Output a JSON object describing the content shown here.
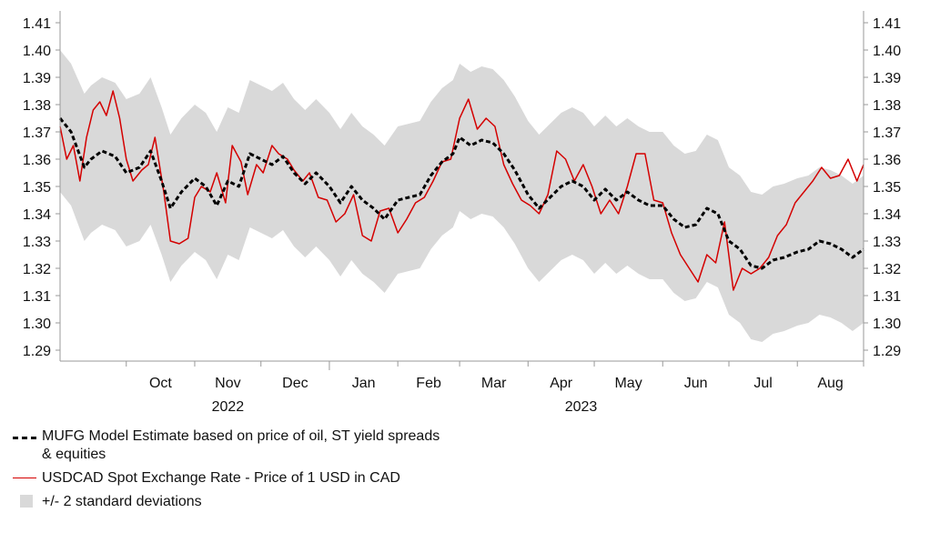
{
  "chart_data": {
    "type": "line",
    "title": "",
    "xlabel": "",
    "ylabel": "",
    "ylim": [
      1.285,
      1.415
    ],
    "y_ticks": [
      "1.41",
      "1.40",
      "1.39",
      "1.38",
      "1.37",
      "1.36",
      "1.35",
      "1.34",
      "1.33",
      "1.32",
      "1.31",
      "1.30",
      "1.29"
    ],
    "x_month_labels": [
      "Oct",
      "Nov",
      "Dec",
      "Jan",
      "Feb",
      "Mar",
      "Apr",
      "May",
      "Jun",
      "Jul",
      "Aug"
    ],
    "x_year_labels": [
      "2022",
      "2023"
    ],
    "x_start": "2022-09-01",
    "x_end": "2023-08-31",
    "grid": false,
    "legend_position": "bottom-left",
    "colors": {
      "spot": "#d40000",
      "model": "#000000",
      "band": "#d9d9d9"
    },
    "series": [
      {
        "name": "MUFG Model Estimate based on price of oil, ST yield spreads & equities",
        "style": "dashed-black",
        "x": [
          "2022-09-01",
          "2022-09-06",
          "2022-09-12",
          "2022-09-15",
          "2022-09-20",
          "2022-09-26",
          "2022-10-01",
          "2022-10-07",
          "2022-10-12",
          "2022-10-17",
          "2022-10-21",
          "2022-10-26",
          "2022-11-01",
          "2022-11-06",
          "2022-11-11",
          "2022-11-16",
          "2022-11-21",
          "2022-11-26",
          "2022-12-01",
          "2022-12-06",
          "2022-12-11",
          "2022-12-16",
          "2022-12-21",
          "2022-12-26",
          "2023-01-01",
          "2023-01-06",
          "2023-01-11",
          "2023-01-16",
          "2023-01-21",
          "2023-01-26",
          "2023-02-01",
          "2023-02-06",
          "2023-02-11",
          "2023-02-16",
          "2023-02-21",
          "2023-02-26",
          "2023-03-01",
          "2023-03-06",
          "2023-03-11",
          "2023-03-16",
          "2023-03-21",
          "2023-03-26",
          "2023-04-01",
          "2023-04-06",
          "2023-04-11",
          "2023-04-16",
          "2023-04-21",
          "2023-04-26",
          "2023-05-01",
          "2023-05-06",
          "2023-05-11",
          "2023-05-16",
          "2023-05-21",
          "2023-05-26",
          "2023-06-01",
          "2023-06-06",
          "2023-06-11",
          "2023-06-16",
          "2023-06-21",
          "2023-06-26",
          "2023-07-01",
          "2023-07-06",
          "2023-07-11",
          "2023-07-16",
          "2023-07-21",
          "2023-07-26",
          "2023-08-01",
          "2023-08-06",
          "2023-08-11",
          "2023-08-16",
          "2023-08-21",
          "2023-08-26",
          "2023-08-31"
        ],
        "values": [
          1.375,
          1.37,
          1.357,
          1.36,
          1.363,
          1.361,
          1.355,
          1.357,
          1.363,
          1.352,
          1.342,
          1.348,
          1.353,
          1.35,
          1.343,
          1.352,
          1.35,
          1.362,
          1.36,
          1.358,
          1.361,
          1.355,
          1.351,
          1.355,
          1.35,
          1.344,
          1.35,
          1.345,
          1.342,
          1.338,
          1.345,
          1.346,
          1.347,
          1.354,
          1.359,
          1.362,
          1.368,
          1.365,
          1.367,
          1.366,
          1.362,
          1.356,
          1.347,
          1.342,
          1.346,
          1.35,
          1.352,
          1.35,
          1.345,
          1.349,
          1.345,
          1.348,
          1.345,
          1.343,
          1.343,
          1.338,
          1.335,
          1.336,
          1.342,
          1.34,
          1.33,
          1.327,
          1.321,
          1.32,
          1.323,
          1.324,
          1.326,
          1.327,
          1.33,
          1.329,
          1.327,
          1.324,
          1.327
        ]
      },
      {
        "name": "USDCAD Spot Exchange Rate - Price of 1 USD in CAD",
        "style": "solid-red",
        "x": [
          "2022-09-01",
          "2022-09-04",
          "2022-09-07",
          "2022-09-10",
          "2022-09-13",
          "2022-09-16",
          "2022-09-19",
          "2022-09-22",
          "2022-09-25",
          "2022-09-28",
          "2022-10-01",
          "2022-10-04",
          "2022-10-08",
          "2022-10-11",
          "2022-10-14",
          "2022-10-18",
          "2022-10-21",
          "2022-10-25",
          "2022-10-29",
          "2022-11-01",
          "2022-11-04",
          "2022-11-08",
          "2022-11-11",
          "2022-11-15",
          "2022-11-18",
          "2022-11-22",
          "2022-11-25",
          "2022-11-29",
          "2022-12-02",
          "2022-12-06",
          "2022-12-09",
          "2022-12-13",
          "2022-12-16",
          "2022-12-20",
          "2022-12-23",
          "2022-12-27",
          "2022-12-31",
          "2023-01-04",
          "2023-01-08",
          "2023-01-12",
          "2023-01-16",
          "2023-01-20",
          "2023-01-24",
          "2023-01-28",
          "2023-02-01",
          "2023-02-05",
          "2023-02-09",
          "2023-02-13",
          "2023-02-17",
          "2023-02-21",
          "2023-02-25",
          "2023-03-01",
          "2023-03-05",
          "2023-03-09",
          "2023-03-13",
          "2023-03-17",
          "2023-03-21",
          "2023-03-25",
          "2023-03-29",
          "2023-04-02",
          "2023-04-06",
          "2023-04-10",
          "2023-04-14",
          "2023-04-18",
          "2023-04-22",
          "2023-04-26",
          "2023-04-30",
          "2023-05-04",
          "2023-05-08",
          "2023-05-12",
          "2023-05-16",
          "2023-05-20",
          "2023-05-24",
          "2023-05-28",
          "2023-06-01",
          "2023-06-05",
          "2023-06-09",
          "2023-06-13",
          "2023-06-17",
          "2023-06-21",
          "2023-06-25",
          "2023-06-29",
          "2023-07-03",
          "2023-07-07",
          "2023-07-11",
          "2023-07-15",
          "2023-07-19",
          "2023-07-23",
          "2023-07-27",
          "2023-07-31",
          "2023-08-04",
          "2023-08-08",
          "2023-08-12",
          "2023-08-16",
          "2023-08-20",
          "2023-08-24",
          "2023-08-28",
          "2023-08-31"
        ],
        "values": [
          1.372,
          1.36,
          1.365,
          1.352,
          1.368,
          1.378,
          1.381,
          1.376,
          1.385,
          1.375,
          1.36,
          1.352,
          1.356,
          1.358,
          1.368,
          1.348,
          1.33,
          1.329,
          1.331,
          1.346,
          1.35,
          1.348,
          1.355,
          1.344,
          1.365,
          1.359,
          1.347,
          1.358,
          1.355,
          1.365,
          1.362,
          1.36,
          1.356,
          1.352,
          1.355,
          1.346,
          1.345,
          1.337,
          1.34,
          1.347,
          1.332,
          1.33,
          1.341,
          1.342,
          1.333,
          1.338,
          1.344,
          1.346,
          1.352,
          1.359,
          1.36,
          1.375,
          1.382,
          1.371,
          1.375,
          1.372,
          1.358,
          1.351,
          1.345,
          1.343,
          1.34,
          1.347,
          1.363,
          1.36,
          1.352,
          1.358,
          1.35,
          1.34,
          1.345,
          1.34,
          1.35,
          1.362,
          1.362,
          1.345,
          1.344,
          1.333,
          1.325,
          1.32,
          1.315,
          1.325,
          1.322,
          1.337,
          1.312,
          1.32,
          1.318,
          1.32,
          1.324,
          1.332,
          1.336,
          1.344,
          1.348,
          1.352,
          1.357,
          1.353,
          1.354,
          1.36,
          1.352,
          1.358
        ]
      },
      {
        "name": "+/- 2 standard deviations",
        "style": "grey-band",
        "x": [
          "2022-09-01",
          "2022-09-06",
          "2022-09-12",
          "2022-09-15",
          "2022-09-20",
          "2022-09-26",
          "2022-10-01",
          "2022-10-07",
          "2022-10-12",
          "2022-10-17",
          "2022-10-21",
          "2022-10-26",
          "2022-11-01",
          "2022-11-06",
          "2022-11-11",
          "2022-11-16",
          "2022-11-21",
          "2022-11-26",
          "2022-12-01",
          "2022-12-06",
          "2022-12-11",
          "2022-12-16",
          "2022-12-21",
          "2022-12-26",
          "2023-01-01",
          "2023-01-06",
          "2023-01-11",
          "2023-01-16",
          "2023-01-21",
          "2023-01-26",
          "2023-02-01",
          "2023-02-06",
          "2023-02-11",
          "2023-02-16",
          "2023-02-21",
          "2023-02-26",
          "2023-03-01",
          "2023-03-06",
          "2023-03-11",
          "2023-03-16",
          "2023-03-21",
          "2023-03-26",
          "2023-04-01",
          "2023-04-06",
          "2023-04-11",
          "2023-04-16",
          "2023-04-21",
          "2023-04-26",
          "2023-05-01",
          "2023-05-06",
          "2023-05-11",
          "2023-05-16",
          "2023-05-21",
          "2023-05-26",
          "2023-06-01",
          "2023-06-06",
          "2023-06-11",
          "2023-06-16",
          "2023-06-21",
          "2023-06-26",
          "2023-07-01",
          "2023-07-06",
          "2023-07-11",
          "2023-07-16",
          "2023-07-21",
          "2023-07-26",
          "2023-08-01",
          "2023-08-06",
          "2023-08-11",
          "2023-08-16",
          "2023-08-21",
          "2023-08-26",
          "2023-08-31"
        ],
        "upper": [
          1.4,
          1.395,
          1.384,
          1.387,
          1.39,
          1.388,
          1.382,
          1.384,
          1.39,
          1.379,
          1.369,
          1.375,
          1.38,
          1.377,
          1.37,
          1.379,
          1.377,
          1.389,
          1.387,
          1.385,
          1.388,
          1.382,
          1.378,
          1.382,
          1.377,
          1.371,
          1.377,
          1.372,
          1.369,
          1.365,
          1.372,
          1.373,
          1.374,
          1.381,
          1.386,
          1.389,
          1.395,
          1.392,
          1.394,
          1.393,
          1.389,
          1.383,
          1.374,
          1.369,
          1.373,
          1.377,
          1.379,
          1.377,
          1.372,
          1.376,
          1.372,
          1.375,
          1.372,
          1.37,
          1.37,
          1.365,
          1.362,
          1.363,
          1.369,
          1.367,
          1.357,
          1.354,
          1.348,
          1.347,
          1.35,
          1.351,
          1.353,
          1.354,
          1.357,
          1.356,
          1.354,
          1.351,
          1.354
        ],
        "lower": [
          1.348,
          1.343,
          1.33,
          1.333,
          1.336,
          1.334,
          1.328,
          1.33,
          1.336,
          1.325,
          1.315,
          1.321,
          1.326,
          1.323,
          1.316,
          1.325,
          1.323,
          1.335,
          1.333,
          1.331,
          1.334,
          1.328,
          1.324,
          1.328,
          1.323,
          1.317,
          1.323,
          1.318,
          1.315,
          1.311,
          1.318,
          1.319,
          1.32,
          1.327,
          1.332,
          1.335,
          1.341,
          1.338,
          1.34,
          1.339,
          1.335,
          1.329,
          1.32,
          1.315,
          1.319,
          1.323,
          1.325,
          1.323,
          1.318,
          1.322,
          1.318,
          1.321,
          1.318,
          1.316,
          1.316,
          1.311,
          1.308,
          1.309,
          1.315,
          1.313,
          1.303,
          1.3,
          1.294,
          1.293,
          1.296,
          1.297,
          1.299,
          1.3,
          1.303,
          1.302,
          1.3,
          1.297,
          1.3
        ]
      }
    ]
  },
  "legend": {
    "model_label": "MUFG Model Estimate based on price of oil, ST yield spreads",
    "model_label_line2": "& equities",
    "spot_label": "USDCAD Spot Exchange Rate - Price of 1 USD in CAD",
    "band_label": "+/- 2 standard deviations"
  }
}
